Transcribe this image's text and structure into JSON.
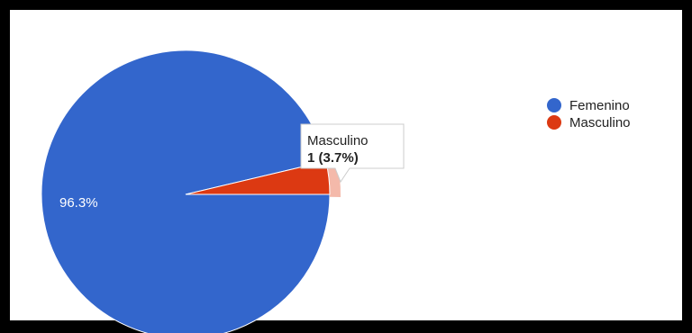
{
  "chart_data": {
    "type": "pie",
    "categories": [
      "Femenino",
      "Masculino"
    ],
    "values": [
      26,
      1
    ],
    "percent_labels": [
      "96.3%",
      ""
    ],
    "colors": [
      "#3366cc",
      "#dc3912"
    ],
    "legend_position": "right",
    "tooltip": {
      "category": "Masculino",
      "value_text": "1 (3.7%)"
    }
  }
}
